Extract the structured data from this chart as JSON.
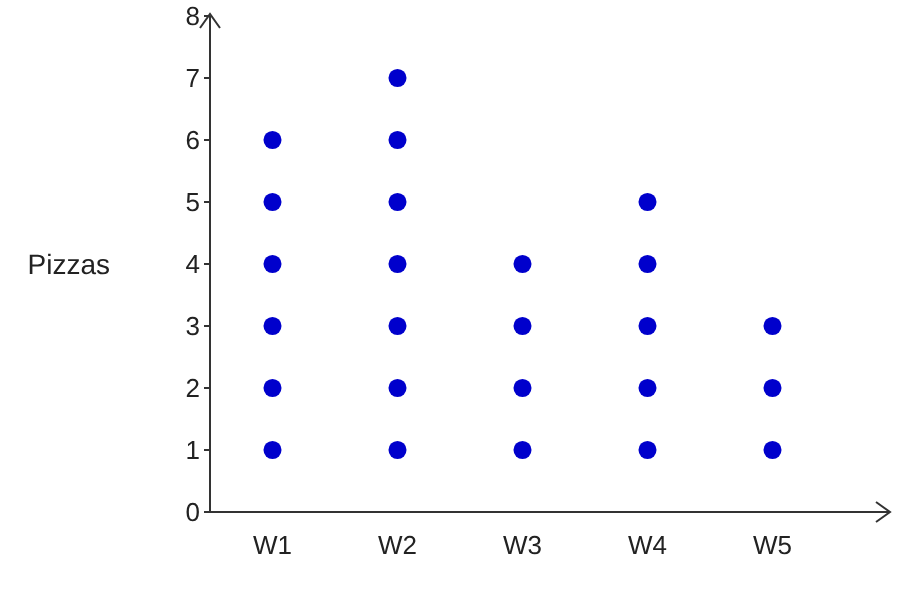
{
  "chart_data": {
    "type": "scatter",
    "ylabel": "Pizzas",
    "categories": [
      "W1",
      "W2",
      "W3",
      "W4",
      "W5"
    ],
    "series": [
      {
        "color": "#0000cc",
        "x": [
          "W1",
          "W1",
          "W1",
          "W1",
          "W1",
          "W1",
          "W2",
          "W2",
          "W2",
          "W2",
          "W2",
          "W2",
          "W2",
          "W3",
          "W3",
          "W3",
          "W3",
          "W4",
          "W4",
          "W4",
          "W4",
          "W4",
          "W5",
          "W5",
          "W5"
        ],
        "values": [
          1,
          2,
          3,
          4,
          5,
          6,
          1,
          2,
          3,
          4,
          5,
          6,
          7,
          1,
          2,
          3,
          4,
          1,
          2,
          3,
          4,
          5,
          1,
          2,
          3
        ]
      }
    ],
    "ylim": [
      0,
      8
    ],
    "yticks": [
      0,
      1,
      2,
      3,
      4,
      5,
      6,
      7,
      8
    ],
    "grid": false,
    "legend": false,
    "marker": "circle"
  }
}
